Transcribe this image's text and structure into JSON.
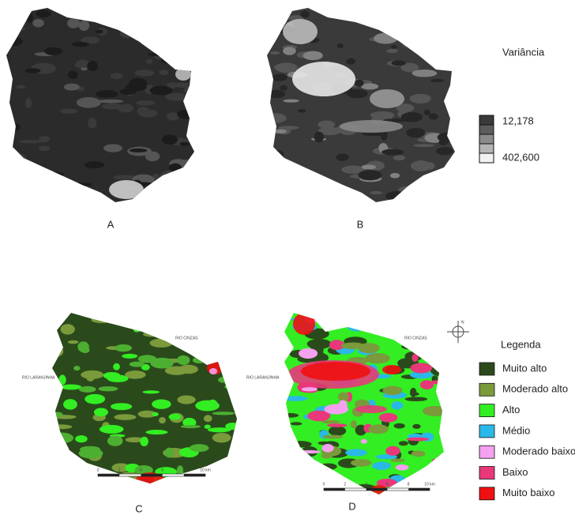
{
  "panels": [
    {
      "label": "A"
    },
    {
      "label": "B"
    },
    {
      "label": "C",
      "rivers": [
        "RIO CINZAS",
        "RIO LARANJINHA"
      ],
      "scale": [
        "0",
        "2",
        "4",
        "6",
        "8",
        "10 km"
      ]
    },
    {
      "label": "D",
      "rivers": [
        "RIO CINZAS",
        "RIO LARANJINHA"
      ],
      "scale": [
        "0",
        "2",
        "4",
        "6",
        "8",
        "10 km"
      ]
    }
  ],
  "variance_legend": {
    "title": "Variância",
    "min": "12,178",
    "max": "402,600",
    "colors": [
      "#3a3a3a",
      "#5c5c5c",
      "#8a8a8a",
      "#b5b5b5",
      "#f2f2f2"
    ]
  },
  "north": "N",
  "class_legend": {
    "title": "Legenda",
    "items": [
      {
        "label": "Muito alto",
        "color": "#2b4a1c"
      },
      {
        "label": "Moderado alto",
        "color": "#7a9a3c"
      },
      {
        "label": "Alto",
        "color": "#33ee22"
      },
      {
        "label": "Médio",
        "color": "#2ab8e8"
      },
      {
        "label": "Moderado baixo",
        "color": "#f5a0f0"
      },
      {
        "label": "Baixo",
        "color": "#e8387a"
      },
      {
        "label": "Muito baixo",
        "color": "#ee1111"
      }
    ]
  }
}
